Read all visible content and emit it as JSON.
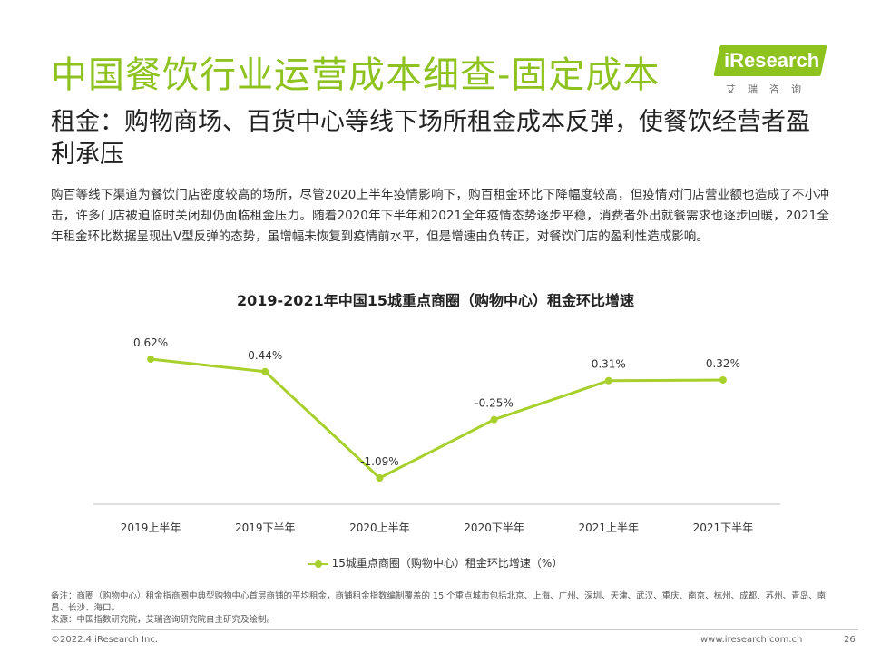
{
  "header": {
    "title": "中国餐饮行业运营成本细查-固定成本",
    "subtitle": "租金：购物商场、百货中心等线下场所租金成本反弹，使餐饮经营者盈利承压",
    "logo_text": "iResearch",
    "logo_sub": "艾瑞咨询"
  },
  "description": "购百等线下渠道为餐饮门店密度较高的场所，尽管2020上半年疫情影响下，购百租金环比下降幅度较高，但疫情对门店营业额也造成了不小冲击，许多门店被迫临时关闭却仍面临租金压力。随着2020年下半年和2021全年疫情态势逐步平稳，消费者外出就餐需求也逐步回暖，2021全年租金环比数据呈现出V型反弹的态势，虽增幅未恢复到疫情前水平，但是增速由负转正，对餐饮门店的盈利性造成影响。",
  "chart_data": {
    "type": "line",
    "title": "2019-2021年中国15城重点商圈（购物中心）租金环比增速",
    "categories": [
      "2019上半年",
      "2019下半年",
      "2020上半年",
      "2020下半年",
      "2021上半年",
      "2021下半年"
    ],
    "series": [
      {
        "name": "15城重点商圈（购物中心）租金环比增速（%）",
        "values": [
          0.62,
          0.44,
          -1.09,
          -0.25,
          0.31,
          0.32
        ],
        "labels": [
          "0.62%",
          "0.44%",
          "-1.09%",
          "-0.25%",
          "0.31%",
          "0.32%"
        ],
        "color": "#a8d02c"
      }
    ],
    "grid": false,
    "legend": "bottom"
  },
  "notes": {
    "remark": "备注：商圈（购物中心）租金指商圈中典型购物中心首层商铺的平均租金，商铺租金指数编制覆盖的 15 个重点城市包括北京、上海、广州、深圳、天津、武汉、重庆、南京、杭州、成都、苏州、青岛、南昌、长沙、海口。",
    "source": "来源：中国指数研究院，艾瑞咨询研究院自主研究及绘制。"
  },
  "footer": {
    "copyright": "©2022.4 iResearch Inc.",
    "website": "www.iresearch.com.cn",
    "page": "26"
  },
  "colors": {
    "brand": "#8dc21f",
    "line": "#a8d02c"
  }
}
